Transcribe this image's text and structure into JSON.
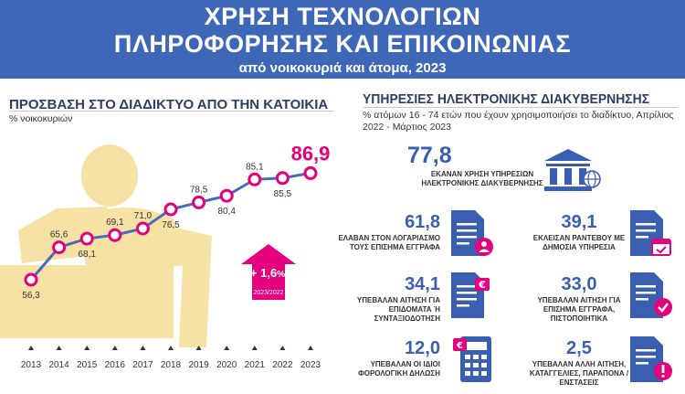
{
  "banner": {
    "line1": "ΧΡΗΣΗ ΤΕΧΝΟΛΟΓΙΩΝ",
    "line2": "ΠΛΗΡΟΦΟΡΗΣΗΣ ΚΑΙ ΕΠΙΚΟΙΝΩΝΙΑΣ",
    "line3": "από νοικοκυριά και άτομα, 2023"
  },
  "left": {
    "title": "ΠΡΟΣΒΑΣΗ ΣΤΟ ΔΙΑΔΙΚΤΥΟ ΑΠΟ ΤΗΝ ΚΑΤΟΙΚΙΑ",
    "subtitle": "% νοικοκυριών",
    "badge_value": "+ 1,6",
    "badge_unit": "%",
    "badge_period": "2023/2022"
  },
  "chart_data": {
    "type": "line",
    "title": "ΠΡΟΣΒΑΣΗ ΣΤΟ ΔΙΑΔΙΚΤΥΟ ΑΠΟ ΤΗΝ ΚΑΤΟΙΚΙΑ",
    "ylabel": "% νοικοκυριών",
    "x": [
      "2013",
      "2014",
      "2015",
      "2016",
      "2017",
      "2018",
      "2019",
      "2020",
      "2021",
      "2022",
      "2023"
    ],
    "values": [
      56.3,
      65.6,
      68.1,
      69.1,
      71.0,
      76.5,
      78.5,
      80.4,
      85.1,
      85.5,
      86.9
    ],
    "labels": [
      "56,3",
      "65,6",
      "68,1",
      "69,1",
      "71,0",
      "76,5",
      "78,5",
      "80,4",
      "85,1",
      "85,5",
      "86,9"
    ],
    "label_pos": [
      "below",
      "above",
      "below",
      "above",
      "above",
      "below",
      "above",
      "below",
      "above",
      "below",
      "above"
    ],
    "ylim": [
      50,
      92
    ],
    "grid": false,
    "colors": {
      "line": "#4a6bb5",
      "marker_fill": "#ffffff",
      "marker_stroke": "#e4007e",
      "highlight": "#e4007e",
      "silhouette": "#f7e2a5"
    }
  },
  "right": {
    "title": "ΥΠΗΡΕΣΙΕΣ ΗΛΕΚΤΡΟΝΙΚΗΣ ΔΙΑΚΥΒΕΡΝΗΣΗΣ",
    "subtitle": "% ατόμων 16 - 74 ετών που έχουν χρησιμοποιήσει το διαδίκτυο, Απρίλιος 2022 - Μάρτιος 2023",
    "hero_value": "77,8",
    "hero_desc": "ΕΚΑΝΑΝ ΧΡΗΣΗ ΥΠΗΡΕΣΙΩΝ ΗΛΕΚΤΡΟΝΙΚΗΣ ΔΙΑΚΥΒΕΡΝΗΣΗΣ",
    "stats": [
      {
        "value": "61,8",
        "desc": "ΕΛΑΒΑΝ ΣΤΟΝ ΛΟΓΑΡΙΑΣΜΟ ΤΟΥΣ ΕΠΙΣΗΜΑ ΕΓΓΡΑΦΑ",
        "icon": "document-user-icon"
      },
      {
        "value": "39,1",
        "desc": "ΕΚΛΕΙΣΑΝ ΡΑΝΤΕΒΟΥ ΜΕ ΔΗΜΟΣΙΑ ΥΠΗΡΕΣΙΑ",
        "icon": "document-calendar-icon"
      },
      {
        "value": "34,1",
        "desc": "ΥΠΕΒΑΛΑΝ ΑΙΤΗΣΗ ΓΙΑ ΕΠΙΔΟΜΑΤΑ Ή ΣΥΝΤΑΞΙΟΔΟΤΗΣΗ",
        "icon": "document-euro-icon"
      },
      {
        "value": "33,0",
        "desc": "ΥΠΕΒΑΛΑΝ ΑΙΤΗΣΗ ΓΙΑ ΕΠΙΣΗΜΑ ΕΓΓΡΑΦΑ, ΠΙΣΤΟΠΟΙΗΤΙΚΑ",
        "icon": "document-check-icon"
      },
      {
        "value": "12,0",
        "desc": "ΥΠΕΒΑΛΑΝ ΟΙ ΙΔΙΟΙ ΦΟΡΟΛΟΓΙΚΗ ΔΗΛΩΣΗ",
        "icon": "calculator-euro-icon"
      },
      {
        "value": "2,5",
        "desc": "ΥΠΕΒΑΛΑΝ ΑΛΛΗ ΑΙΤΗΣΗ, ΚΑΤΑΓΓΕΛΙΕΣ, ΠΑΡΑΠΟΝΑ / ΕΝΣΤΑΣΕΙΣ",
        "icon": "document-alert-icon"
      }
    ],
    "colors": {
      "accent": "#e4007e",
      "primary": "#3a5fb0"
    }
  }
}
